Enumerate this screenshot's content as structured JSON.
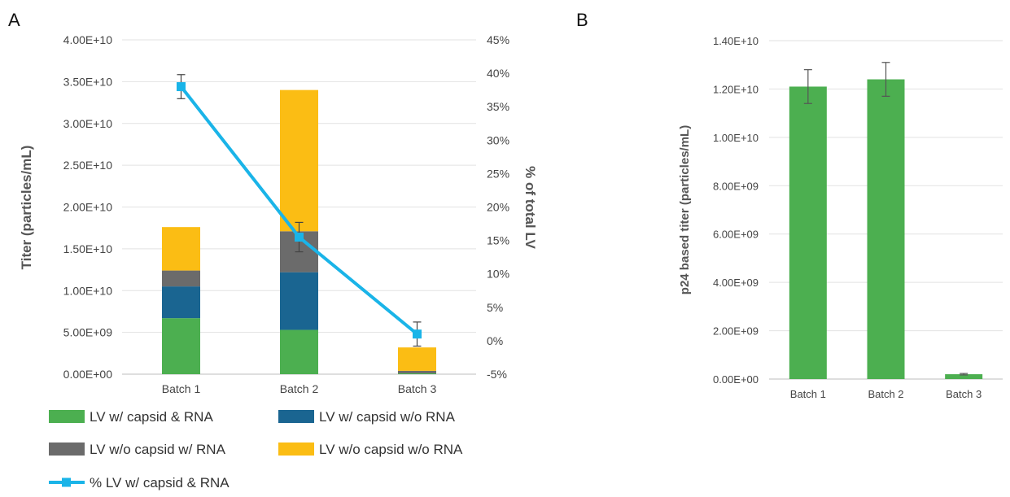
{
  "chart_data": [
    {
      "panel_label": "A",
      "type": "bar",
      "stacked": true,
      "categories": [
        "Batch 1",
        "Batch 2",
        "Batch 3"
      ],
      "ylabel": "Titer (particles/mL)",
      "ylabel_right": "% of total LV",
      "ylim": [
        0,
        40000000000
      ],
      "ylim_right": [
        -5,
        45
      ],
      "y_ticks": [
        "0.00E+00",
        "5.00E+09",
        "1.00E+10",
        "1.50E+10",
        "2.00E+10",
        "2.50E+10",
        "3.00E+10",
        "3.50E+10",
        "4.00E+10"
      ],
      "y_ticks_right": [
        "-5%",
        "0%",
        "5%",
        "10%",
        "15%",
        "20%",
        "25%",
        "30%",
        "35%",
        "40%",
        "45%"
      ],
      "grid": true,
      "legend_position": "bottom",
      "series": [
        {
          "name": "LV w/ capsid & RNA",
          "color": "#4caf50",
          "values": [
            6700000000,
            5300000000,
            100000000
          ]
        },
        {
          "name": "LV w/ capsid w/o RNA",
          "color": "#1a6591",
          "values": [
            3800000000,
            6900000000,
            0
          ]
        },
        {
          "name": "LV w/o capsid w/ RNA",
          "color": "#6b6b6b",
          "values": [
            1900000000,
            4900000000,
            300000000
          ]
        },
        {
          "name": "LV w/o capsid w/o RNA",
          "color": "#fbbd14",
          "values": [
            5200000000,
            16900000000,
            2800000000
          ]
        }
      ],
      "line_series": {
        "name": "% LV w/ capsid & RNA",
        "color": "#1ab4e8",
        "axis": "right",
        "values": [
          38,
          15.5,
          1
        ],
        "error": [
          1.8,
          2.2,
          1.8
        ]
      }
    },
    {
      "panel_label": "B",
      "type": "bar",
      "categories": [
        "Batch 1",
        "Batch 2",
        "Batch 3"
      ],
      "ylabel": "p24 based titer (particles/mL)",
      "ylim": [
        0,
        14000000000
      ],
      "y_ticks": [
        "0.00E+00",
        "2.00E+09",
        "4.00E+09",
        "6.00E+09",
        "8.00E+09",
        "1.00E+10",
        "1.20E+10",
        "1.40E+10"
      ],
      "grid": true,
      "series": [
        {
          "color": "#4caf50",
          "values": [
            12100000000,
            12400000000,
            200000000
          ],
          "error": [
            700000000,
            700000000,
            30000000
          ]
        }
      ]
    }
  ]
}
